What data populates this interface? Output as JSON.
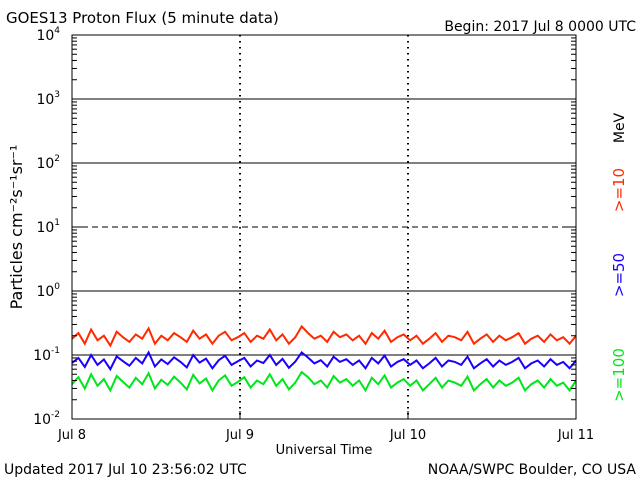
{
  "chart_data": {
    "type": "line",
    "title": "GOES13 Proton Flux (5 minute data)",
    "begin": "Begin: 2017 Jul 8 0000 UTC",
    "xlabel": "Universal Time",
    "ylabel": "Particles cm⁻²s⁻¹sr⁻¹",
    "units_label": "MeV",
    "updated": "Updated 2017 Jul 10 23:56:02 UTC",
    "credit": "NOAA/SWPC Boulder, CO USA",
    "y_scale": "log",
    "ylim": [
      0.01,
      10000
    ],
    "xlim": [
      "2017-07-08 00:00",
      "2017-07-11 00:00"
    ],
    "x_ticks": [
      {
        "label": "Jul 8",
        "t": "2017-07-08 00:00"
      },
      {
        "label": "Jul 9",
        "t": "2017-07-09 00:00"
      },
      {
        "label": "Jul 10",
        "t": "2017-07-10 00:00"
      },
      {
        "label": "Jul 11",
        "t": "2017-07-11 00:00"
      }
    ],
    "y_ticks": [
      {
        "base": "10",
        "exp": "-2",
        "value": 0.01
      },
      {
        "base": "10",
        "exp": "-1",
        "value": 0.1
      },
      {
        "base": "10",
        "exp": "0",
        "value": 1
      },
      {
        "base": "10",
        "exp": "1",
        "value": 10
      },
      {
        "base": "10",
        "exp": "2",
        "value": 100
      },
      {
        "base": "10",
        "exp": "3",
        "value": 1000
      },
      {
        "base": "10",
        "exp": "4",
        "value": 10000
      }
    ],
    "reference_lines": [
      {
        "value": 10,
        "style": "dashed"
      },
      {
        "value": 1,
        "style": "solid"
      },
      {
        "value": 100,
        "style": "solid"
      },
      {
        "value": 1000,
        "style": "solid"
      },
      {
        "value": 0.1,
        "style": "solid"
      }
    ],
    "series": [
      {
        "name": ">=10",
        "color": "#ff2a00",
        "values": [
          0.18,
          0.22,
          0.15,
          0.25,
          0.17,
          0.2,
          0.14,
          0.23,
          0.19,
          0.16,
          0.21,
          0.18,
          0.26,
          0.15,
          0.2,
          0.17,
          0.22,
          0.19,
          0.16,
          0.24,
          0.18,
          0.21,
          0.15,
          0.2,
          0.23,
          0.17,
          0.19,
          0.22,
          0.16,
          0.2,
          0.18,
          0.25,
          0.17,
          0.21,
          0.15,
          0.19,
          0.28,
          0.22,
          0.18,
          0.2,
          0.16,
          0.23,
          0.19,
          0.21,
          0.17,
          0.2,
          0.15,
          0.22,
          0.18,
          0.24,
          0.16,
          0.19,
          0.21,
          0.17,
          0.2,
          0.15,
          0.18,
          0.22,
          0.16,
          0.2,
          0.19,
          0.17,
          0.23,
          0.15,
          0.18,
          0.21,
          0.16,
          0.2,
          0.17,
          0.19,
          0.22,
          0.15,
          0.18,
          0.2,
          0.16,
          0.21,
          0.17,
          0.19,
          0.15,
          0.2
        ]
      },
      {
        "name": ">=50",
        "color": "#1a00ff",
        "values": [
          0.075,
          0.09,
          0.065,
          0.1,
          0.07,
          0.085,
          0.06,
          0.095,
          0.08,
          0.068,
          0.09,
          0.074,
          0.11,
          0.066,
          0.085,
          0.072,
          0.092,
          0.078,
          0.064,
          0.1,
          0.076,
          0.088,
          0.062,
          0.083,
          0.097,
          0.07,
          0.08,
          0.09,
          0.066,
          0.082,
          0.075,
          0.1,
          0.07,
          0.087,
          0.063,
          0.079,
          0.11,
          0.091,
          0.074,
          0.083,
          0.066,
          0.094,
          0.078,
          0.086,
          0.07,
          0.082,
          0.062,
          0.09,
          0.074,
          0.098,
          0.066,
          0.078,
          0.086,
          0.07,
          0.082,
          0.062,
          0.074,
          0.09,
          0.066,
          0.082,
          0.078,
          0.07,
          0.094,
          0.062,
          0.074,
          0.086,
          0.066,
          0.082,
          0.07,
          0.078,
          0.09,
          0.062,
          0.074,
          0.082,
          0.066,
          0.086,
          0.07,
          0.078,
          0.062,
          0.082
        ]
      },
      {
        "name": ">=100",
        "color": "#00e61a",
        "values": [
          0.035,
          0.045,
          0.03,
          0.05,
          0.033,
          0.042,
          0.028,
          0.047,
          0.038,
          0.031,
          0.044,
          0.035,
          0.052,
          0.03,
          0.041,
          0.034,
          0.046,
          0.037,
          0.029,
          0.049,
          0.036,
          0.043,
          0.028,
          0.04,
          0.048,
          0.033,
          0.038,
          0.045,
          0.031,
          0.04,
          0.035,
          0.05,
          0.033,
          0.042,
          0.029,
          0.037,
          0.054,
          0.045,
          0.035,
          0.04,
          0.031,
          0.047,
          0.037,
          0.042,
          0.033,
          0.04,
          0.028,
          0.044,
          0.035,
          0.048,
          0.031,
          0.037,
          0.042,
          0.033,
          0.04,
          0.028,
          0.035,
          0.044,
          0.031,
          0.04,
          0.037,
          0.033,
          0.046,
          0.028,
          0.035,
          0.042,
          0.031,
          0.04,
          0.033,
          0.037,
          0.044,
          0.028,
          0.035,
          0.04,
          0.031,
          0.042,
          0.033,
          0.037,
          0.028,
          0.04
        ]
      }
    ]
  }
}
